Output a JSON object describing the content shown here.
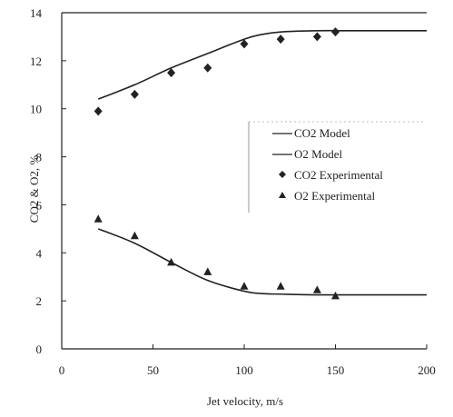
{
  "chart_data": {
    "type": "scatter",
    "xlabel": "Jet velocity, m/s",
    "ylabel": "CO2 & O2, %",
    "xlim": [
      0,
      200
    ],
    "ylim": [
      0,
      14
    ],
    "xticks": [
      "0",
      "50",
      "100",
      "150",
      "200"
    ],
    "yticks": [
      "0",
      "2",
      "4",
      "6",
      "8",
      "10",
      "12",
      "14"
    ],
    "legend_position": "center-right",
    "grid": false,
    "series": [
      {
        "name": "CO2 Model",
        "kind": "line",
        "color": "#222222",
        "x": [
          20,
          40,
          60,
          80,
          100,
          110,
          120,
          140,
          160,
          180,
          200
        ],
        "y": [
          10.4,
          11.0,
          11.7,
          12.3,
          12.9,
          13.1,
          13.2,
          13.25,
          13.25,
          13.25,
          13.25
        ]
      },
      {
        "name": "O2 Model",
        "kind": "line",
        "color": "#222222",
        "x": [
          20,
          40,
          60,
          80,
          100,
          110,
          120,
          140,
          160,
          180,
          200
        ],
        "y": [
          5.0,
          4.4,
          3.6,
          2.85,
          2.4,
          2.3,
          2.28,
          2.25,
          2.25,
          2.25,
          2.25
        ]
      },
      {
        "name": "CO2 Experimental",
        "kind": "scatter",
        "marker": "diamond",
        "color": "#222222",
        "x": [
          20,
          40,
          60,
          80,
          100,
          120,
          140,
          150
        ],
        "y": [
          9.9,
          10.6,
          11.5,
          11.7,
          12.7,
          12.9,
          13.0,
          13.2
        ]
      },
      {
        "name": "O2 Experimental",
        "kind": "scatter",
        "marker": "triangle",
        "color": "#222222",
        "x": [
          20,
          40,
          60,
          80,
          100,
          120,
          140,
          150
        ],
        "y": [
          5.4,
          4.7,
          3.6,
          3.2,
          2.6,
          2.6,
          2.45,
          2.2
        ]
      }
    ]
  }
}
